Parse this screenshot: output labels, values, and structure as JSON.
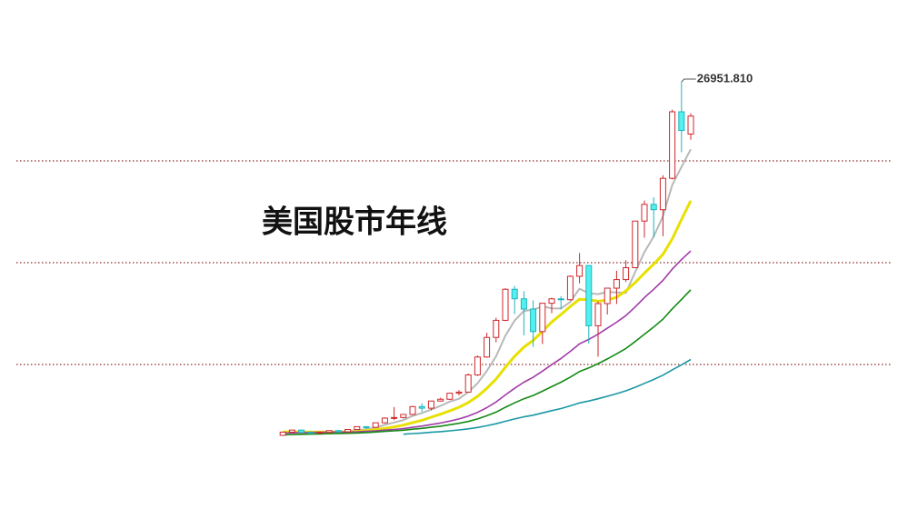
{
  "chart_data": {
    "type": "candlestick",
    "title": "美国股市年线",
    "ylim": [
      0,
      30000
    ],
    "gridlines": [
      21061,
      13476,
      5892
    ],
    "grid_color": "#8b2a2a",
    "up_color": "#d0262b",
    "down_color": "#54f0f0",
    "down_edge": "#1fb4bc",
    "open": [
      616,
      852,
      1005,
      831,
      805,
      839,
      964,
      875,
      1047,
      1259,
      1212,
      1547,
      1896,
      1939,
      2169,
      2753,
      2634,
      3169,
      3301,
      3754,
      3834,
      5117,
      6448,
      7908,
      9181,
      11497,
      10787,
      10021,
      8342,
      10454,
      10783,
      10718,
      12463,
      13265,
      8776,
      10428,
      11578,
      12218,
      13104,
      16577,
      17823,
      17425,
      19763,
      24719,
      23058
    ],
    "high": [
      882,
      1015,
      1014,
      918,
      903,
      1000,
      1024,
      1070,
      1287,
      1287,
      1553,
      1956,
      2722,
      2184,
      2792,
      3000,
      3168,
      3413,
      3794,
      3978,
      5216,
      6561,
      8259,
      9374,
      11568,
      11750,
      11350,
      10673,
      10462,
      10868,
      10984,
      12529,
      14198,
      13279,
      10580,
      11585,
      12876,
      13662,
      16588,
      18103,
      18351,
      19987,
      24876,
      26951.81,
      24600
    ],
    "low": [
      616,
      852,
      801,
      742,
      796,
      759,
      824,
      777,
      1027,
      1087,
      1185,
      1502,
      1739,
      1879,
      2145,
      2365,
      2470,
      3137,
      3242,
      3593,
      3832,
      5032,
      6391,
      7539,
      9121,
      9654,
      8062,
      7197,
      7416,
      9708,
      10000,
      10661,
      11939,
      7449,
      6470,
      9614,
      10405,
      12035,
      13104,
      15341,
      15370,
      15451,
      19677,
      21712,
      22638
    ],
    "close": [
      852,
      1005,
      831,
      805,
      839,
      964,
      875,
      1047,
      1259,
      1212,
      1547,
      1896,
      1939,
      2169,
      2753,
      2634,
      3169,
      3301,
      3754,
      3834,
      5117,
      6448,
      7908,
      9181,
      11497,
      10787,
      10021,
      8342,
      10454,
      10783,
      10718,
      12463,
      13265,
      8776,
      10428,
      11578,
      12218,
      13104,
      16577,
      17823,
      17425,
      19763,
      24719,
      23327,
      24400
    ],
    "series": [
      {
        "color": "#b8b8b8",
        "width": 2,
        "values": [
          null,
          null,
          null,
          null,
          866,
          889,
          863,
          906,
          997,
          1071,
          1188,
          1392,
          1571,
          1753,
          2061,
          2278,
          2533,
          2805,
          3122,
          3338,
          3835,
          4491,
          5412,
          6498,
          8030,
          9164,
          9879,
          9966,
          10220,
          10077,
          10064,
          10552,
          11537,
          11201,
          11130,
          11302,
          11253,
          11221,
          12781,
          14260,
          15429,
          16938,
          19261,
          20611,
          21927
        ]
      },
      {
        "color": "#e8e000",
        "width": 3,
        "values": [
          850,
          872,
          865,
          851,
          855,
          867,
          866,
          869,
          909,
          969,
          1038,
          1128,
          1238,
          1375,
          1566,
          1733,
          1963,
          2188,
          2437,
          2700,
          3057,
          3512,
          4109,
          4810,
          5684,
          6500,
          7185,
          7689,
          8359,
          9054,
          9614,
          10215,
          10751,
          10711,
          10604,
          10683,
          10903,
          11379,
          11991,
          12695,
          13366,
          14096,
          15241,
          16696,
          18093
        ]
      },
      {
        "color": "#a03ca8",
        "width": 1.6,
        "values": [
          780,
          800,
          820,
          835,
          845,
          855,
          858,
          860,
          875,
          905,
          944,
          1000,
          1052,
          1113,
          1211,
          1300,
          1415,
          1529,
          1673,
          1835,
          2048,
          2320,
          2674,
          3093,
          3625,
          4117,
          4574,
          4939,
          5398,
          5877,
          6336,
          6864,
          7430,
          7761,
          8144,
          8592,
          9044,
          9534,
          10175,
          10875,
          11490,
          12156,
          12996,
          13704,
          14349
        ]
      },
      {
        "color": "#148a14",
        "width": 1.6,
        "values": [
          650,
          670,
          690,
          705,
          720,
          735,
          750,
          765,
          785,
          820,
          863,
          907,
          948,
          995,
          1067,
          1133,
          1213,
          1296,
          1399,
          1513,
          1648,
          1837,
          2071,
          2345,
          2702,
          3033,
          3338,
          3582,
          3902,
          4241,
          4570,
          4952,
          5366,
          5632,
          5951,
          6305,
          6684,
          7085,
          7596,
          8150,
          8679,
          9274,
          10034,
          10739,
          11460
        ]
      },
      {
        "color": "#1a98a4",
        "width": 1.6,
        "values": [
          null,
          null,
          null,
          null,
          null,
          null,
          null,
          null,
          null,
          null,
          null,
          null,
          null,
          698,
          744,
          787,
          837,
          888,
          950,
          1017,
          1094,
          1199,
          1326,
          1473,
          1661,
          1832,
          1989,
          2116,
          2281,
          2453,
          2610,
          2811,
          3028,
          3169,
          3336,
          3520,
          3717,
          3925,
          4191,
          4485,
          4771,
          5091,
          5491,
          5867,
          6264
        ]
      }
    ],
    "annotations": [
      {
        "label": "26951.810",
        "value": 26951.81
      }
    ]
  }
}
